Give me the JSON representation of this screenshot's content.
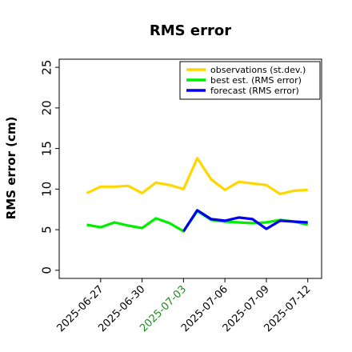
{
  "chart_data": {
    "type": "line",
    "title": "RMS error",
    "xlabel": "",
    "ylabel": "RMS error (cm)",
    "ylim": [
      -1,
      26
    ],
    "yticks": [
      0,
      5,
      10,
      15,
      20,
      25
    ],
    "x": [
      "2025-06-26",
      "2025-06-27",
      "2025-06-28",
      "2025-06-29",
      "2025-06-30",
      "2025-07-01",
      "2025-07-02",
      "2025-07-03",
      "2025-07-04",
      "2025-07-05",
      "2025-07-06",
      "2025-07-07",
      "2025-07-08",
      "2025-07-09",
      "2025-07-10",
      "2025-07-11",
      "2025-07-12"
    ],
    "xlim": [
      "2025-06-24",
      "2025-07-13"
    ],
    "xticks": [
      "2025-06-27",
      "2025-06-30",
      "2025-07-03",
      "2025-07-06",
      "2025-07-09",
      "2025-07-12"
    ],
    "highlight_tick": "2025-07-03",
    "highlight_color": "#1f8a1f",
    "legend_position": "top-right",
    "grid": false,
    "series": [
      {
        "name": "observations (st.dev.)",
        "color": "#ffd700",
        "values": [
          9.5,
          10.3,
          10.3,
          10.4,
          9.5,
          10.8,
          10.5,
          10.0,
          13.8,
          11.2,
          9.9,
          10.9,
          10.7,
          10.5,
          9.4,
          9.8,
          9.9
        ]
      },
      {
        "name": "best est. (RMS error)",
        "color": "#00ee00",
        "values": [
          5.6,
          5.3,
          5.9,
          5.5,
          5.2,
          6.4,
          5.8,
          4.8,
          7.3,
          6.2,
          6.0,
          5.9,
          5.8,
          5.9,
          6.2,
          6.0,
          5.6
        ]
      },
      {
        "name": "forecast (RMS error)",
        "color": "#0000ee",
        "x": [
          "2025-07-03",
          "2025-07-04",
          "2025-07-05",
          "2025-07-06",
          "2025-07-07",
          "2025-07-08",
          "2025-07-09",
          "2025-07-10",
          "2025-07-11",
          "2025-07-12"
        ],
        "values": [
          4.8,
          7.4,
          6.3,
          6.1,
          6.5,
          6.3,
          5.1,
          6.1,
          6.0,
          5.9
        ]
      }
    ]
  }
}
